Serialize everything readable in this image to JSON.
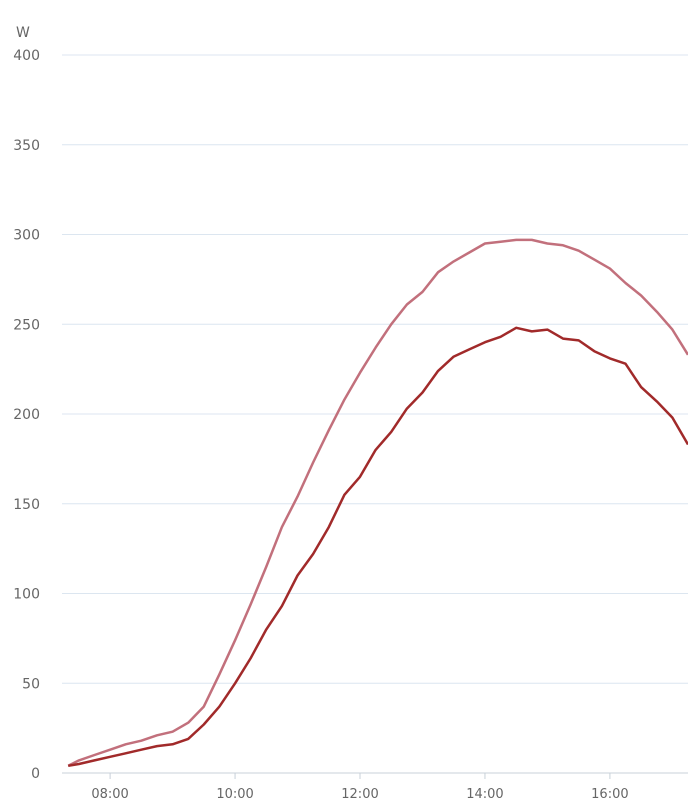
{
  "chart_data": {
    "type": "line",
    "y_label": "W",
    "x": [
      7.33,
      7.5,
      7.75,
      8.0,
      8.25,
      8.5,
      8.75,
      9.0,
      9.25,
      9.5,
      9.75,
      10.0,
      10.25,
      10.5,
      10.75,
      11.0,
      11.25,
      11.5,
      11.75,
      12.0,
      12.25,
      12.5,
      12.75,
      13.0,
      13.25,
      13.5,
      13.75,
      14.0,
      14.25,
      14.5,
      14.75,
      15.0,
      15.25,
      15.5,
      15.75,
      16.0,
      16.25,
      16.5,
      16.75,
      17.0,
      17.25
    ],
    "series": [
      {
        "color": "#c2707c",
        "values": [
          4,
          7,
          10,
          13,
          16,
          18,
          21,
          23,
          28,
          37,
          55,
          74,
          94,
          115,
          137,
          154,
          173,
          191,
          208,
          223,
          237,
          250,
          261,
          268,
          279,
          285,
          290,
          295,
          296,
          297,
          297,
          295,
          294,
          291,
          286,
          281,
          273,
          266,
          257,
          247,
          233
        ]
      },
      {
        "color": "#a12a2a",
        "values": [
          4,
          5,
          7,
          9,
          11,
          13,
          15,
          16,
          19,
          27,
          37,
          50,
          64,
          80,
          93,
          110,
          122,
          137,
          155,
          165,
          180,
          190,
          203,
          212,
          224,
          232,
          236,
          240,
          243,
          248,
          246,
          247,
          242,
          241,
          235,
          231,
          228,
          215,
          207,
          198,
          183
        ]
      }
    ],
    "xlim": [
      7.23,
      17.25
    ],
    "xticks": [
      {
        "value": 8,
        "label": "08:00"
      },
      {
        "value": 10,
        "label": "10:00"
      },
      {
        "value": 12,
        "label": "12:00"
      },
      {
        "value": 14,
        "label": "14:00"
      },
      {
        "value": 16,
        "label": "16:00"
      }
    ],
    "ylim": [
      0,
      400
    ],
    "yticks": [
      0,
      50,
      100,
      150,
      200,
      250,
      300,
      350,
      400
    ],
    "grid": true
  }
}
